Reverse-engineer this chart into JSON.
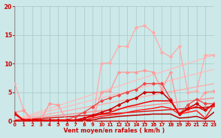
{
  "background_color": "#cce8e8",
  "grid_color": "#aacccc",
  "xlabel": "Vent moyen/en rafales ( km/h )",
  "xlim": [
    0,
    23
  ],
  "ylim": [
    0,
    20
  ],
  "xticks": [
    0,
    1,
    2,
    3,
    4,
    5,
    6,
    7,
    8,
    9,
    10,
    11,
    12,
    13,
    14,
    15,
    16,
    17,
    18,
    19,
    20,
    21,
    22,
    23
  ],
  "yticks": [
    0,
    5,
    10,
    15,
    20
  ],
  "lines": [
    {
      "x": [
        0,
        23
      ],
      "y": [
        0.2,
        11.5
      ],
      "color": "#ffbbbb",
      "lw": 1.0,
      "marker": null
    },
    {
      "x": [
        0,
        23
      ],
      "y": [
        0.2,
        9.0
      ],
      "color": "#ffbbbb",
      "lw": 1.0,
      "marker": null
    },
    {
      "x": [
        0,
        23
      ],
      "y": [
        0.1,
        6.5
      ],
      "color": "#ffaaaa",
      "lw": 1.0,
      "marker": null
    },
    {
      "x": [
        0,
        23
      ],
      "y": [
        0.1,
        4.0
      ],
      "color": "#ff8888",
      "lw": 1.0,
      "marker": null
    },
    {
      "x": [
        0,
        23
      ],
      "y": [
        0.1,
        2.5
      ],
      "color": "#dd0000",
      "lw": 1.0,
      "marker": null
    },
    {
      "x": [
        0,
        1,
        2,
        3,
        4,
        5,
        6,
        7,
        8,
        9,
        10,
        11,
        12,
        13,
        14,
        15,
        16,
        17,
        18,
        19,
        20,
        21,
        22,
        23
      ],
      "y": [
        6.5,
        2.0,
        0.2,
        0.15,
        0.15,
        0.15,
        0.15,
        0.15,
        0.15,
        0.15,
        10.0,
        10.2,
        13.0,
        13.0,
        16.3,
        16.6,
        15.4,
        12.0,
        11.2,
        13.0,
        5.0,
        5.2,
        11.5,
        11.5
      ],
      "color": "#ffaaaa",
      "lw": 1.0,
      "marker": "D",
      "markersize": 2.5
    },
    {
      "x": [
        0,
        1,
        2,
        3,
        4,
        5,
        6,
        7,
        8,
        9,
        10,
        11,
        12,
        13,
        14,
        15,
        16,
        17,
        18,
        19,
        20,
        21,
        22,
        23
      ],
      "y": [
        1.5,
        1.8,
        0.2,
        0.15,
        3.0,
        2.8,
        0.15,
        0.15,
        0.15,
        0.15,
        5.0,
        5.2,
        8.5,
        8.5,
        8.5,
        8.8,
        8.5,
        5.5,
        8.5,
        1.2,
        2.0,
        3.0,
        5.0,
        5.2
      ],
      "color": "#ff9999",
      "lw": 1.0,
      "marker": "D",
      "markersize": 2.5
    },
    {
      "x": [
        0,
        1,
        2,
        3,
        4,
        5,
        6,
        7,
        8,
        9,
        10,
        11,
        12,
        13,
        14,
        15,
        16,
        17,
        18,
        19,
        20,
        21,
        22,
        23
      ],
      "y": [
        1.5,
        0.15,
        0.15,
        0.15,
        0.15,
        0.15,
        0.15,
        0.8,
        1.5,
        2.5,
        3.5,
        4.0,
        4.5,
        5.0,
        5.5,
        6.5,
        6.5,
        6.5,
        3.8,
        1.2,
        2.8,
        3.8,
        3.0,
        3.0
      ],
      "color": "#ee4444",
      "lw": 1.0,
      "marker": "D",
      "markersize": 2.5
    },
    {
      "x": [
        0,
        1,
        2,
        3,
        4,
        5,
        6,
        7,
        8,
        9,
        10,
        11,
        12,
        13,
        14,
        15,
        16,
        17,
        18,
        19,
        20,
        21,
        22,
        23
      ],
      "y": [
        1.2,
        0.15,
        0.15,
        0.15,
        0.15,
        0.15,
        0.15,
        0.15,
        0.5,
        1.0,
        1.5,
        2.0,
        2.8,
        3.5,
        4.0,
        5.0,
        5.0,
        5.0,
        3.5,
        1.2,
        2.2,
        3.0,
        2.0,
        2.8
      ],
      "color": "#cc0000",
      "lw": 1.2,
      "marker": "D",
      "markersize": 2.5
    },
    {
      "x": [
        0,
        1,
        2,
        3,
        4,
        5,
        6,
        7,
        8,
        9,
        10,
        11,
        12,
        13,
        14,
        15,
        16,
        17,
        18,
        19,
        20,
        21,
        22,
        23
      ],
      "y": [
        1.2,
        0.15,
        0.15,
        0.15,
        0.15,
        0.15,
        0.15,
        0.15,
        0.15,
        0.5,
        0.8,
        1.0,
        1.2,
        1.5,
        1.8,
        2.0,
        2.2,
        2.5,
        2.2,
        1.2,
        1.5,
        1.8,
        0.5,
        2.8
      ],
      "color": "#ff2222",
      "lw": 1.2,
      "marker": null
    },
    {
      "x": [
        0,
        1,
        2,
        3,
        4,
        5,
        6,
        7,
        8,
        9,
        10,
        11,
        12,
        13,
        14,
        15,
        16,
        17,
        18,
        19,
        20,
        21,
        22,
        23
      ],
      "y": [
        1.2,
        0.15,
        0.15,
        0.15,
        0.15,
        0.15,
        0.15,
        0.15,
        0.15,
        0.15,
        0.5,
        0.6,
        0.8,
        0.9,
        1.0,
        1.1,
        1.2,
        1.2,
        1.2,
        0.5,
        0.6,
        0.8,
        0.3,
        1.5
      ],
      "color": "#bb0000",
      "lw": 1.2,
      "marker": null
    },
    {
      "x": [
        0,
        1,
        2,
        3,
        4,
        5,
        6,
        7,
        8,
        9,
        10,
        11,
        12,
        13,
        14,
        15,
        16,
        17,
        18,
        19,
        20,
        21,
        22,
        23
      ],
      "y": [
        1.2,
        0.15,
        0.15,
        0.15,
        0.15,
        0.15,
        0.15,
        0.15,
        0.5,
        0.8,
        1.2,
        1.5,
        2.0,
        2.5,
        2.8,
        3.2,
        3.5,
        3.5,
        3.5,
        1.2,
        2.0,
        2.5,
        1.8,
        3.0
      ],
      "color": "#ee0000",
      "lw": 1.2,
      "marker": null
    }
  ]
}
